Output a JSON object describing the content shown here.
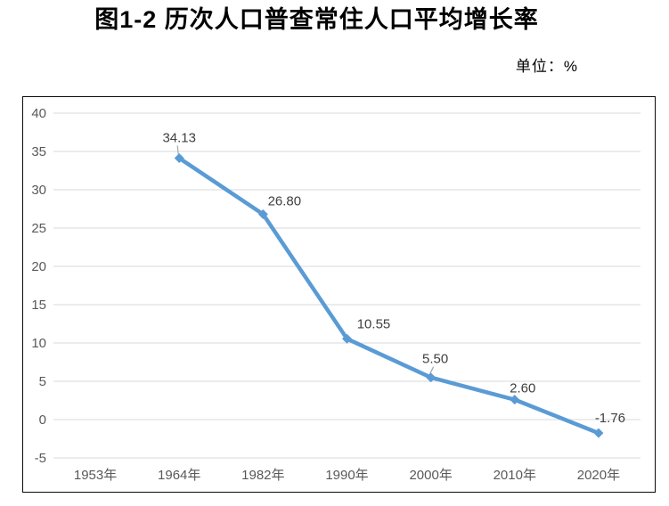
{
  "title": "图1-2 历次人口普查常住人口平均增长率",
  "unit_label": "单位：%",
  "chart_data": {
    "type": "line",
    "title": "图1-2 历次人口普查常住人口平均增长率",
    "unit": "%",
    "categories": [
      "1953年",
      "1964年",
      "1982年",
      "1990年",
      "2000年",
      "2010年",
      "2020年"
    ],
    "values": [
      null,
      34.13,
      26.8,
      10.55,
      5.5,
      2.6,
      -1.76
    ],
    "point_labels": [
      "",
      "34.13",
      "26.80",
      "10.55",
      "5.50",
      "2.60",
      "-1.76"
    ],
    "ylim": [
      -5,
      40
    ],
    "yticks": [
      40,
      35,
      30,
      25,
      20,
      15,
      10,
      5,
      0,
      -5
    ],
    "grid": true,
    "legend": "none",
    "marker": "diamond",
    "colors": {
      "line": "#5B9BD5",
      "marker": "#5B9BD5",
      "gridline": "#D9D9D9",
      "axis_text": "#595959",
      "data_label_text": "#404040",
      "leader_line": "#A6A6A6",
      "chart_border": "#0a0a0a"
    }
  }
}
